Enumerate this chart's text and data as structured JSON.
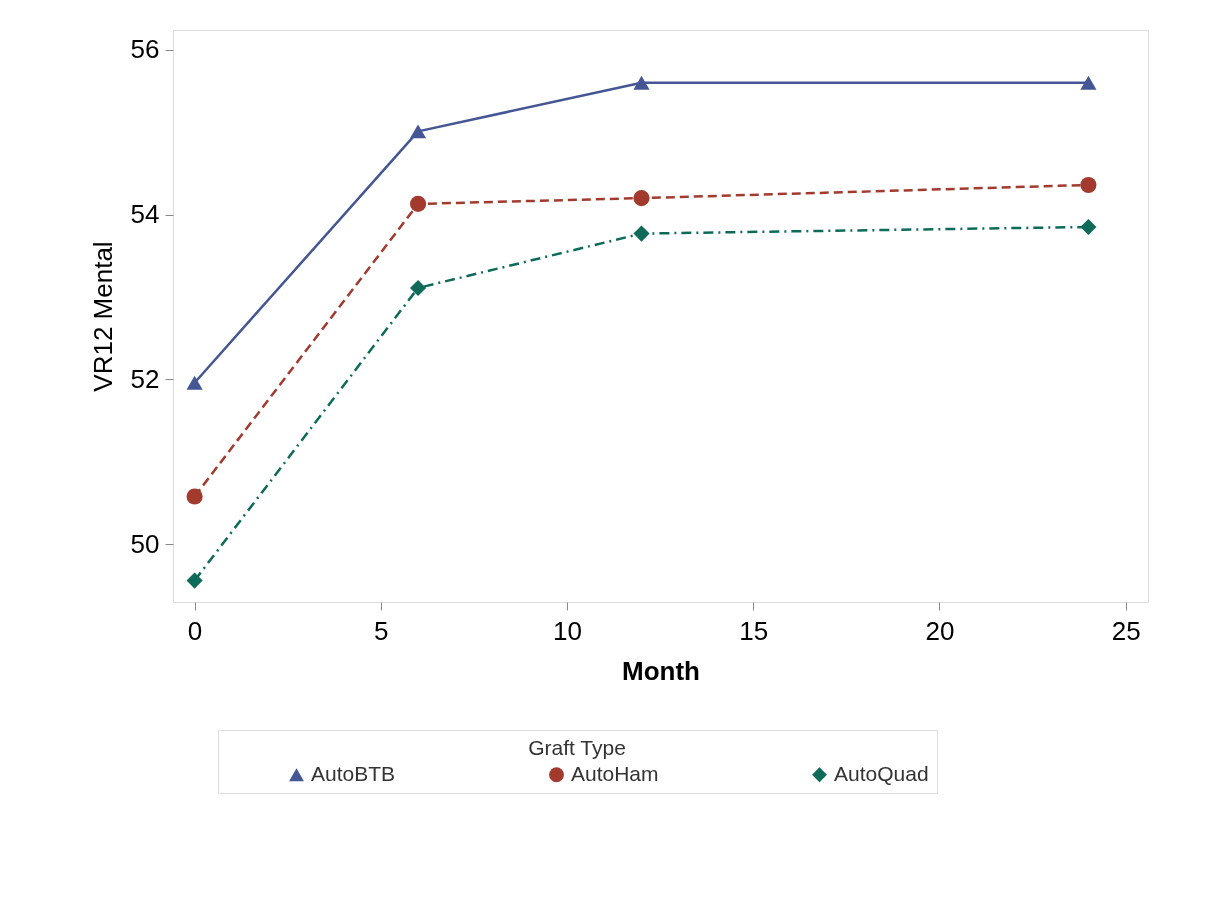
{
  "chart_data": {
    "type": "line",
    "xlabel": "Month",
    "ylabel": "VR12 Mental",
    "legend_title": "Graft Type",
    "legend": "bottom",
    "grid": false,
    "x": [
      0,
      6,
      12,
      24
    ],
    "xlim": [
      -0.58,
      25.6
    ],
    "xticks": [
      0,
      5,
      10,
      15,
      20,
      25
    ],
    "ylim": [
      49.3,
      56.24
    ],
    "yticks": [
      50,
      52,
      54,
      56
    ],
    "series": [
      {
        "name": "AutoBTB",
        "color": "#445694",
        "marker": "triangle",
        "line_style": "solid",
        "values": [
          51.96,
          55.01,
          55.6,
          55.6
        ]
      },
      {
        "name": "AutoHam",
        "color": "#a23a2e",
        "marker": "circle",
        "line_style": "dashed",
        "values": [
          50.58,
          54.13,
          54.2,
          54.36
        ]
      },
      {
        "name": "AutoQuad",
        "color": "#0e6b5a",
        "marker": "diamond",
        "line_style": "dashdot",
        "values": [
          49.56,
          53.11,
          53.77,
          53.85
        ]
      }
    ]
  }
}
